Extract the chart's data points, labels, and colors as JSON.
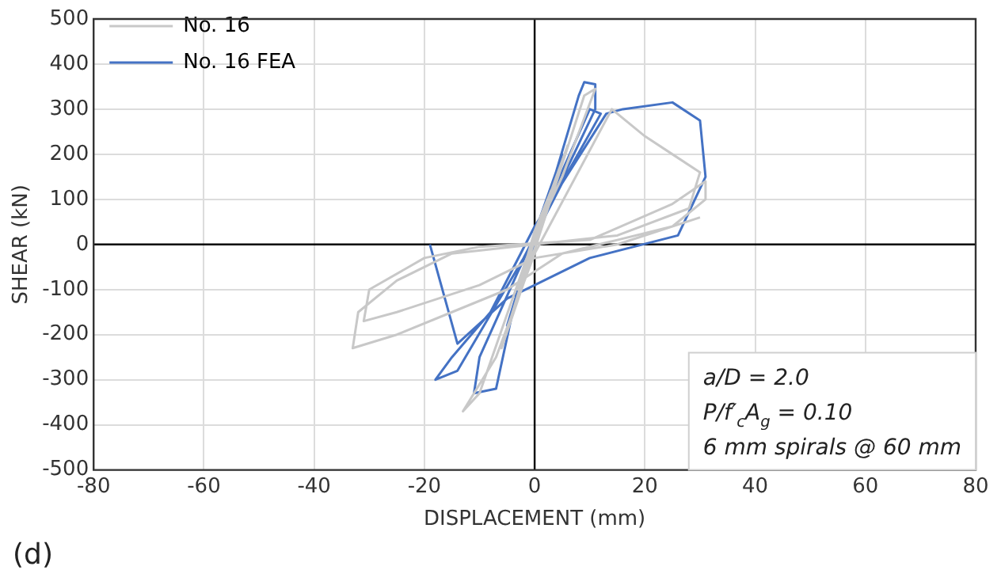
{
  "chart_data": {
    "type": "line",
    "xlabel": "DISPLACEMENT (mm)",
    "ylabel": "SHEAR (kN)",
    "xlim": [
      -80,
      80
    ],
    "xticks": [
      -80,
      -60,
      -40,
      -20,
      0,
      20,
      40,
      60,
      80
    ],
    "ylim": [
      -500,
      500
    ],
    "yticks": [
      -500,
      -400,
      -300,
      -200,
      -100,
      0,
      100,
      200,
      300,
      400,
      500
    ],
    "grid": true,
    "legend": "top left",
    "marker": "none",
    "line_style": "solid",
    "annotations": [
      "(d)",
      "a/D = 2.0",
      "P/f′$_{c}$A$_{g}$ = 0.10",
      "6 mm spirals @ 60 mm"
    ],
    "series": [
      {
        "name": "No. 16",
        "color": "#c8c8c8",
        "x": [
          0,
          3,
          0,
          -3,
          0,
          6,
          1,
          -6,
          -1,
          9,
          11,
          5,
          0,
          -10,
          -13,
          -7,
          0,
          14,
          20,
          25,
          30,
          28,
          15,
          0,
          -15,
          -25,
          -32,
          -33,
          -25,
          -15,
          -5,
          5,
          15,
          25,
          31,
          31,
          25,
          10,
          -10,
          -20,
          -30,
          -31,
          -25,
          -10,
          0,
          15,
          30
        ],
        "values": [
          0,
          120,
          30,
          -100,
          -10,
          220,
          50,
          -230,
          -50,
          330,
          345,
          150,
          20,
          -330,
          -370,
          -250,
          -20,
          300,
          240,
          200,
          160,
          80,
          20,
          0,
          -20,
          -80,
          -150,
          -230,
          -200,
          -150,
          -100,
          -20,
          10,
          40,
          100,
          140,
          90,
          10,
          -5,
          -30,
          -100,
          -170,
          -150,
          -90,
          -30,
          0,
          60
        ]
      },
      {
        "name": "No. 16 FEA",
        "color": "#4472c4",
        "x": [
          0,
          3,
          0,
          -3,
          0,
          5,
          1,
          -5,
          -1,
          8,
          9,
          11,
          11,
          4,
          -3,
          -10,
          -11,
          -7,
          -4,
          2,
          10,
          12,
          6,
          -2,
          -14,
          -18,
          -15,
          -8,
          0,
          13,
          16,
          25,
          30,
          31,
          26,
          10,
          0,
          -5,
          -14,
          -19
        ],
        "values": [
          0,
          100,
          20,
          -100,
          0,
          200,
          60,
          -180,
          -40,
          330,
          360,
          355,
          300,
          120,
          -60,
          -250,
          -330,
          -320,
          -150,
          80,
          300,
          290,
          160,
          -30,
          -280,
          -300,
          -250,
          -150,
          40,
          290,
          300,
          315,
          275,
          150,
          20,
          -30,
          -90,
          -120,
          -220,
          0
        ]
      }
    ]
  }
}
